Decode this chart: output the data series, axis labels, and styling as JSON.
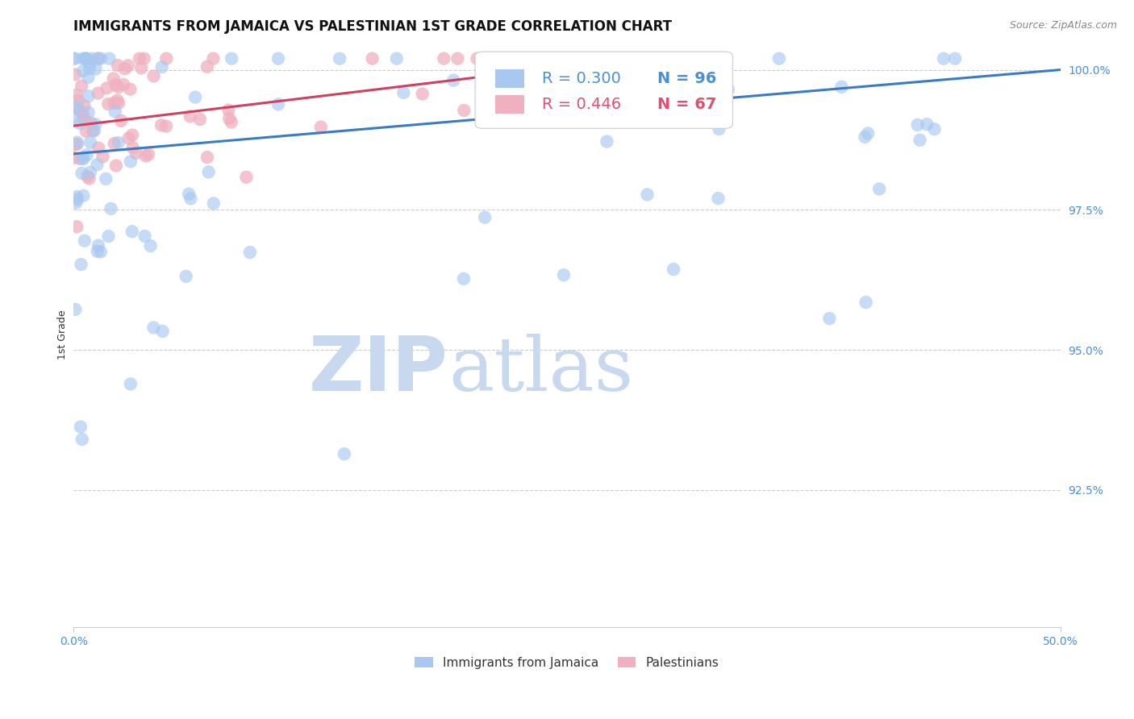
{
  "title": "IMMIGRANTS FROM JAMAICA VS PALESTINIAN 1ST GRADE CORRELATION CHART",
  "source": "Source: ZipAtlas.com",
  "ylabel": "1st Grade",
  "xlim": [
    0.0,
    0.5
  ],
  "ylim": [
    0.9005,
    1.005
  ],
  "xtick_labels": [
    "0.0%",
    "50.0%"
  ],
  "xtick_positions": [
    0.0,
    0.5
  ],
  "ytick_labels": [
    "92.5%",
    "95.0%",
    "97.5%",
    "100.0%"
  ],
  "ytick_positions": [
    0.925,
    0.95,
    0.975,
    1.0
  ],
  "legend_entries": [
    {
      "label": "Immigrants from Jamaica",
      "color": "#a8c8f0"
    },
    {
      "label": "Palestinians",
      "color": "#f0b0c0"
    }
  ],
  "corr_box": {
    "blue_R": "R = 0.300",
    "blue_N": "N = 96",
    "pink_R": "R = 0.446",
    "pink_N": "N = 67",
    "blue_color": "#4A90D9",
    "pink_color": "#E05070"
  },
  "blue_scatter_color": "#a8c8f0",
  "pink_scatter_color": "#f0b0c0",
  "blue_line_color": "#3A7CC4",
  "pink_line_color": "#D04060",
  "background_color": "#ffffff",
  "grid_color": "#cccccc",
  "watermark_zip_color": "#c8d8ee",
  "watermark_atlas_color": "#c8d8ee",
  "title_fontsize": 12,
  "axis_label_fontsize": 9,
  "tick_fontsize": 10,
  "corr_fontsize": 14,
  "legend_fontsize": 11
}
